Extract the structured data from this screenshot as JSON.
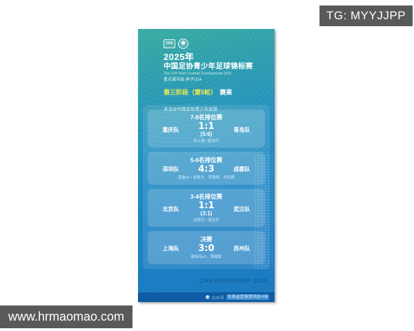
{
  "overlays": {
    "tg_label": "TG: MYYJJPP",
    "site_watermark": "www.hrmaomao.com"
  },
  "poster": {
    "header": {
      "cfa_logo_text": "CFA",
      "year_line": "2025年",
      "title": "中国足协青少年足球锦标赛",
      "subtitle_en": "The CFA Youth Football Championship 2025",
      "group_line": "重点城市组·男子U14",
      "stage_highlight": "第三阶段（第5轮）",
      "stage_suffix": "赛果",
      "follow_line": "关注@中国足协青少年足球"
    },
    "matches": [
      {
        "title": "7-8名排位赛",
        "home": "重庆队",
        "away": "青岛队",
        "score": "1:1",
        "penalty": "(5:6)",
        "scorers": "吴上康 / 聂海宇"
      },
      {
        "title": "5-6名排位赛",
        "home": "深圳队",
        "away": "成都队",
        "score": "4:3",
        "penalty": "",
        "scorers": "黄磊x4 / 张振文、李德明、刘佳麒"
      },
      {
        "title": "3-4名排位赛",
        "home": "北京队",
        "away": "武汉队",
        "score": "1:1",
        "penalty": "(3:1)",
        "scorers": "刘思齐 / 周佳齐"
      },
      {
        "title": "决赛",
        "home": "上海队",
        "away": "苏州队",
        "score": "3:0",
        "penalty": "",
        "scorers": "薛俊佳x2、黄耀斌"
      }
    ],
    "footer": {
      "championship_text": "CHAMPIONSHIP 2025",
      "account_label": "公众号",
      "account_name": "头条@足球资讯站+08"
    }
  },
  "colors": {
    "teal_top": "#3AACA1",
    "blue_bottom": "#1B79C0",
    "panel_card": "rgba(255,255,255,0.17)",
    "stage_yellow": "#F0EE55",
    "footer_bar": "#0F5BA4",
    "overlay_gray": "#58595B"
  }
}
